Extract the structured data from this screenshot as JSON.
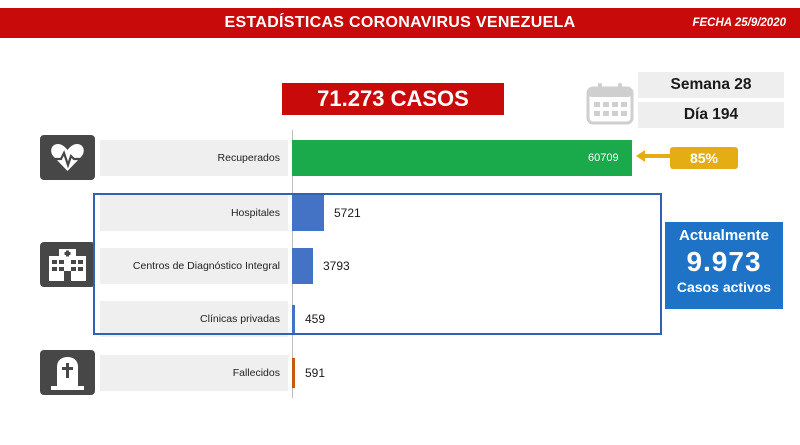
{
  "header": {
    "title": "ESTADÍSTICAS CORONAVIRUS VENEZUELA",
    "date": "FECHA 25/9/2020"
  },
  "total_cases": "71.273 CASOS",
  "calendar": {
    "icon": "calendar-icon",
    "week": "Semana 28",
    "day": "Día 194"
  },
  "recovered_pct": "85%",
  "active": {
    "line1": "Actualmente",
    "value": "9.973",
    "line2": "Casos activos"
  },
  "colors": {
    "header_red": "#c90a0a",
    "recovered": "#1aaa4b",
    "hospitalized": "#4472c4",
    "deaths": "#c55a11",
    "highlight_yellow": "#e4ad14",
    "active_blue": "#1e73c6"
  },
  "chart_data": {
    "type": "bar",
    "orientation": "horizontal",
    "categories": [
      "Recuperados",
      "Hospitales",
      "Centros de Diagnóstico Integral",
      "Clínicas privadas",
      "Fallecidos"
    ],
    "values": [
      60709,
      5721,
      3793,
      459,
      591
    ],
    "value_labels": [
      "60709",
      "5721",
      "3793",
      "459",
      "591"
    ],
    "xlim": [
      0,
      60709
    ],
    "grid": false,
    "icons": [
      "heartbeat-icon",
      "hospital-icon",
      "tombstone-icon"
    ]
  }
}
